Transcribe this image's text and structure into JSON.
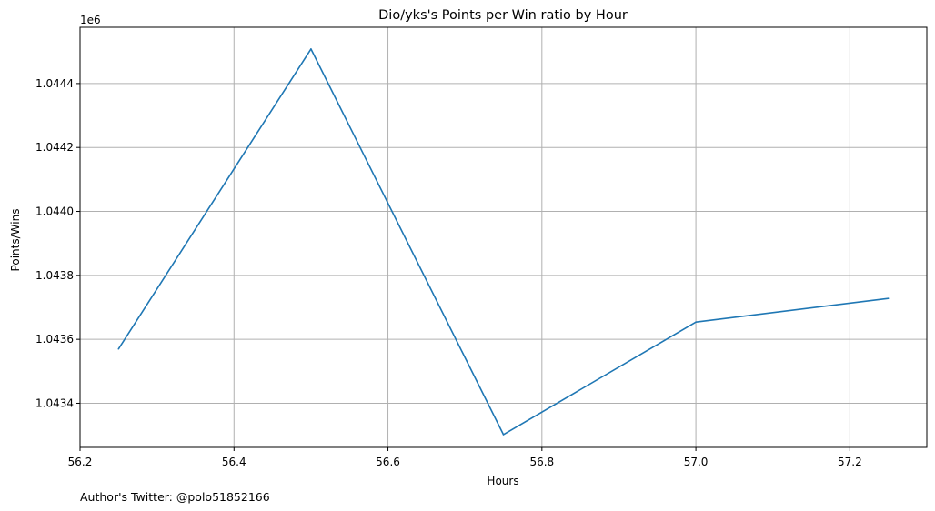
{
  "chart_data": {
    "type": "line",
    "title": "Dio/yks's Points per Win ratio by Hour",
    "xlabel": "Hours",
    "ylabel": "Points/Wins",
    "y_offset_label": "1e6",
    "footnote": "Author's Twitter: @polo51852166",
    "grid": true,
    "xlim": [
      56.2,
      57.3
    ],
    "ylim": [
      1043262,
      1044576
    ],
    "x_ticks": [
      56.2,
      56.4,
      56.6,
      56.8,
      57.0,
      57.2
    ],
    "x_tick_labels": [
      "56.2",
      "56.4",
      "56.6",
      "56.8",
      "57.0",
      "57.2"
    ],
    "y_ticks": [
      1043400,
      1043600,
      1043800,
      1044000,
      1044200,
      1044400
    ],
    "y_tick_labels": [
      "1.0434",
      "1.0436",
      "1.0438",
      "1.0440",
      "1.0442",
      "1.0444"
    ],
    "series": [
      {
        "color": "#1f77b4",
        "x": [
          56.25,
          56.5,
          56.75,
          57.0,
          57.25
        ],
        "y": [
          1043570,
          1044508,
          1043302,
          1043654,
          1043728
        ]
      }
    ]
  }
}
